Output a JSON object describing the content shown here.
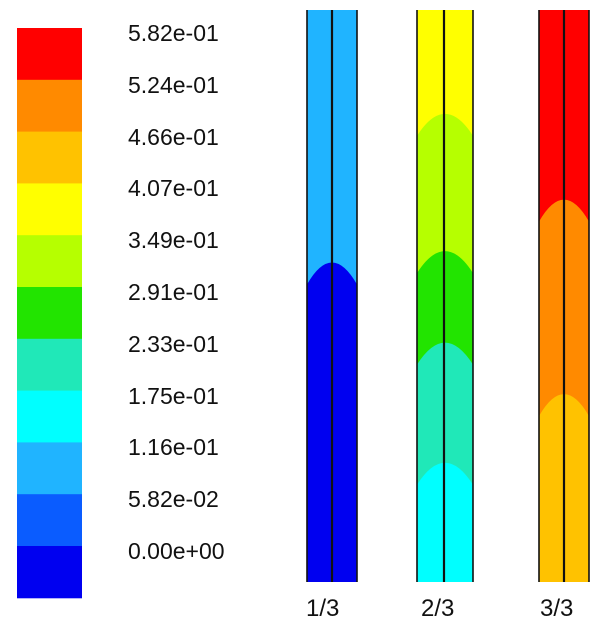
{
  "colorbar": {
    "labels": [
      "5.82e-01",
      "5.24e-01",
      "4.66e-01",
      "4.07e-01",
      "3.49e-01",
      "2.91e-01",
      "2.33e-01",
      "1.75e-01",
      "1.16e-01",
      "5.82e-02",
      "0.00e+00"
    ],
    "colors": [
      "#ff0000",
      "#ff8a00",
      "#ffc200",
      "#ffff00",
      "#b6ff00",
      "#22e400",
      "#20e8b8",
      "#00ffff",
      "#20b4ff",
      "#0a5cff",
      "#0000f0"
    ]
  },
  "columns": [
    {
      "label": "1/3",
      "level_bands": [
        {
          "from": 0.0,
          "to": 0.48,
          "color": "#20b4ff"
        },
        {
          "from": 0.48,
          "to": 1.0,
          "color": "#0000f0"
        }
      ]
    },
    {
      "label": "2/3",
      "level_bands": [
        {
          "from": 0.0,
          "to": 0.22,
          "color": "#ffff00"
        },
        {
          "from": 0.22,
          "to": 0.46,
          "color": "#b6ff00"
        },
        {
          "from": 0.46,
          "to": 0.62,
          "color": "#22e400"
        },
        {
          "from": 0.62,
          "to": 0.83,
          "color": "#20e8b8"
        },
        {
          "from": 0.83,
          "to": 1.0,
          "color": "#00ffff"
        }
      ]
    },
    {
      "label": "3/3",
      "level_bands": [
        {
          "from": 0.0,
          "to": 0.37,
          "color": "#ff0000"
        },
        {
          "from": 0.37,
          "to": 0.71,
          "color": "#ff8a00"
        },
        {
          "from": 0.71,
          "to": 1.0,
          "color": "#ffc200"
        }
      ]
    }
  ]
}
